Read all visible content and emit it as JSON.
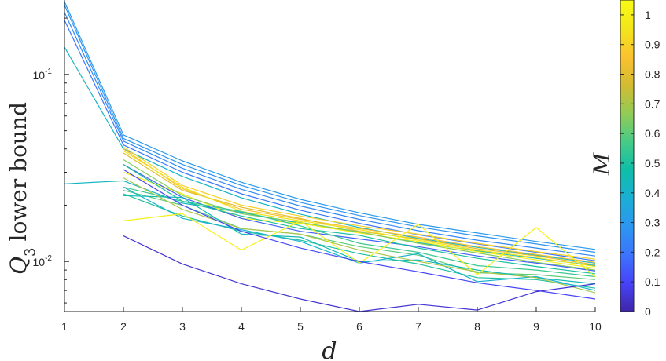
{
  "chart_data": {
    "type": "line",
    "xlabel": "d",
    "ylabel": "Q_3 lower bound",
    "yscale": "log",
    "xlim": [
      1,
      10
    ],
    "ylim": [
      0.0054,
      0.25
    ],
    "x_ticks": [
      1,
      2,
      3,
      4,
      5,
      6,
      7,
      8,
      9,
      10
    ],
    "y_ticks": [
      {
        "value": 0.1,
        "label_base": "10",
        "label_exp": "-1"
      },
      {
        "value": 0.01,
        "label_base": "10",
        "label_exp": "-2"
      }
    ],
    "colorbar": {
      "label": "M",
      "min": 0,
      "max": 1.05,
      "ticks": [
        "0",
        "0.1",
        "0.2",
        "0.3",
        "0.4",
        "0.5",
        "0.6",
        "0.7",
        "0.8",
        "0.9",
        "1"
      ],
      "colormap": [
        "#3e26a8",
        "#4743f8",
        "#3c74fe",
        "#2c96f0",
        "#1bafd4",
        "#0ebea8",
        "#48cb86",
        "#93cb56",
        "#d4bb32",
        "#fbc230",
        "#f2e61b",
        "#f9fb15"
      ]
    },
    "series": [
      {
        "c": 0.3,
        "x": [
          1,
          2,
          3,
          4,
          5,
          6,
          7,
          8,
          9,
          10
        ],
        "y": [
          0.245,
          0.0475,
          0.0345,
          0.0265,
          0.0215,
          0.0182,
          0.0158,
          0.0142,
          0.0128,
          0.0116
        ],
        "w": 2.2
      },
      {
        "c": 0.28,
        "x": [
          1,
          2,
          3,
          4,
          5,
          6,
          7,
          8,
          9,
          10
        ],
        "y": [
          0.235,
          0.0455,
          0.033,
          0.0255,
          0.0207,
          0.0176,
          0.0153,
          0.0137,
          0.0124,
          0.0112
        ],
        "w": 2.2
      },
      {
        "c": 0.25,
        "x": [
          1,
          2,
          3,
          4,
          5,
          6,
          7,
          8,
          9,
          10
        ],
        "y": [
          0.215,
          0.044,
          0.0315,
          0.0243,
          0.0198,
          0.0168,
          0.0146,
          0.013,
          0.0118,
          0.0107
        ],
        "w": 1.6
      },
      {
        "c": 0.2,
        "x": [
          1,
          2,
          3,
          4,
          5,
          6,
          7,
          8,
          9,
          10
        ],
        "y": [
          0.195,
          0.042,
          0.03,
          0.023,
          0.0188,
          0.016,
          0.0139,
          0.0124,
          0.0112,
          0.0101
        ],
        "w": 1.2
      },
      {
        "c": 0.42,
        "x": [
          1,
          2,
          3,
          4,
          5,
          6,
          7,
          8,
          9,
          10
        ],
        "y": [
          0.14,
          0.04,
          0.0285,
          0.0219,
          0.0179,
          0.0152,
          0.0133,
          0.0119,
          0.0108,
          0.0098
        ],
        "w": 1.2
      },
      {
        "c": 0.42,
        "x": [
          1,
          2,
          3,
          4,
          5,
          6,
          7,
          8,
          9,
          10
        ],
        "y": [
          0.026,
          0.027,
          0.0205,
          0.0183,
          0.016,
          0.0143,
          0.0126,
          0.0114,
          0.0104,
          0.0095
        ],
        "w": 1.2
      },
      {
        "c": 0.9,
        "x": [
          2,
          3,
          4,
          5,
          6,
          7,
          8,
          9,
          10
        ],
        "y": [
          0.041,
          0.0255,
          0.02,
          0.0175,
          0.0155,
          0.014,
          0.0125,
          0.0113,
          0.0103
        ],
        "w": 1.2
      },
      {
        "c": 0.85,
        "x": [
          2,
          3,
          4,
          5,
          6,
          7,
          8,
          9,
          10
        ],
        "y": [
          0.04,
          0.0245,
          0.019,
          0.0168,
          0.015,
          0.0135,
          0.012,
          0.0109,
          0.0099
        ],
        "w": 1.2
      },
      {
        "c": 0.8,
        "x": [
          2,
          3,
          4,
          5,
          6,
          7,
          8,
          9,
          10
        ],
        "y": [
          0.038,
          0.024,
          0.0195,
          0.017,
          0.0145,
          0.0132,
          0.0117,
          0.0107,
          0.0096
        ],
        "w": 1.2
      },
      {
        "c": 0.95,
        "x": [
          2,
          3,
          4,
          5,
          6,
          7,
          8,
          9,
          10
        ],
        "y": [
          0.039,
          0.025,
          0.0185,
          0.0165,
          0.0148,
          0.013,
          0.0115,
          0.0105,
          0.0094
        ],
        "w": 1.2
      },
      {
        "c": 1.0,
        "x": [
          2,
          3,
          4,
          5,
          6,
          7,
          8,
          9,
          10
        ],
        "y": [
          0.03,
          0.023,
          0.017,
          0.016,
          0.0142,
          0.0128,
          0.0113,
          0.0102,
          0.0092
        ],
        "w": 1.2
      },
      {
        "c": 0.65,
        "x": [
          2,
          3,
          4,
          5,
          6,
          7,
          8,
          9,
          10
        ],
        "y": [
          0.035,
          0.0225,
          0.018,
          0.0162,
          0.0144,
          0.0125,
          0.0111,
          0.0099,
          0.009
        ],
        "w": 1.2
      },
      {
        "c": 0.15,
        "x": [
          2,
          3,
          4,
          5,
          6,
          7,
          8,
          9,
          10
        ],
        "y": [
          0.033,
          0.022,
          0.017,
          0.0145,
          0.0132,
          0.012,
          0.0107,
          0.0098,
          0.0089
        ],
        "w": 1.2
      },
      {
        "c": 0.5,
        "x": [
          2,
          3,
          4,
          5,
          6,
          7,
          8,
          9,
          10
        ],
        "y": [
          0.033,
          0.021,
          0.0175,
          0.015,
          0.0138,
          0.0118,
          0.0104,
          0.0094,
          0.0086
        ],
        "w": 1.2
      },
      {
        "c": 0.55,
        "x": [
          2,
          3,
          4,
          5,
          6,
          7,
          8,
          9,
          10
        ],
        "y": [
          0.025,
          0.021,
          0.0185,
          0.0155,
          0.0125,
          0.0112,
          0.0095,
          0.009,
          0.0083
        ],
        "w": 1.2
      },
      {
        "c": 0.6,
        "x": [
          2,
          3,
          4,
          5,
          6,
          7,
          8,
          9,
          10
        ],
        "y": [
          0.024,
          0.02,
          0.015,
          0.014,
          0.012,
          0.0108,
          0.0087,
          0.0085,
          0.008
        ],
        "w": 1.2
      },
      {
        "c": 0.45,
        "x": [
          2,
          3,
          4,
          5,
          6,
          7,
          8,
          9,
          10
        ],
        "y": [
          0.0225,
          0.022,
          0.014,
          0.0135,
          0.01,
          0.0102,
          0.009,
          0.0082,
          0.0076
        ],
        "w": 1.2
      },
      {
        "c": 0.5,
        "x": [
          2,
          3,
          4,
          5,
          6,
          7,
          8,
          9,
          10
        ],
        "y": [
          0.023,
          0.0175,
          0.0145,
          0.013,
          0.011,
          0.0097,
          0.0082,
          0.008,
          0.0072
        ],
        "w": 1.2
      },
      {
        "c": 0.4,
        "x": [
          2,
          3,
          4,
          5,
          6,
          7,
          8,
          9,
          10
        ],
        "y": [
          0.025,
          0.017,
          0.0148,
          0.0128,
          0.0098,
          0.011,
          0.0078,
          0.0083,
          0.007
        ],
        "w": 1.2
      },
      {
        "c": 1.0,
        "x": [
          2,
          3,
          4,
          5,
          6,
          7,
          8,
          9,
          10
        ],
        "y": [
          0.0165,
          0.018,
          0.0115,
          0.0165,
          0.0098,
          0.0158,
          0.0085,
          0.0152,
          0.0083
        ],
        "w": 1.2
      },
      {
        "c": 0.7,
        "x": [
          2,
          3,
          4,
          5,
          6,
          7,
          8,
          9,
          10
        ],
        "y": [
          0.028,
          0.019,
          0.015,
          0.014,
          0.0115,
          0.01,
          0.0088,
          0.0082,
          0.0068
        ],
        "w": 1.2
      },
      {
        "c": 0.1,
        "x": [
          2,
          3,
          4,
          5,
          6,
          7,
          8,
          9,
          10
        ],
        "y": [
          0.031,
          0.02,
          0.0145,
          0.0118,
          0.01,
          0.0088,
          0.0077,
          0.007,
          0.0063
        ],
        "w": 1.2
      },
      {
        "c": 0.05,
        "x": [
          2,
          3,
          4,
          5,
          6,
          7,
          8,
          9,
          10
        ],
        "y": [
          0.0137,
          0.0097,
          0.0076,
          0.0063,
          0.0054,
          0.0059,
          0.0055,
          0.0069,
          0.0076
        ],
        "w": 1.2
      }
    ]
  }
}
